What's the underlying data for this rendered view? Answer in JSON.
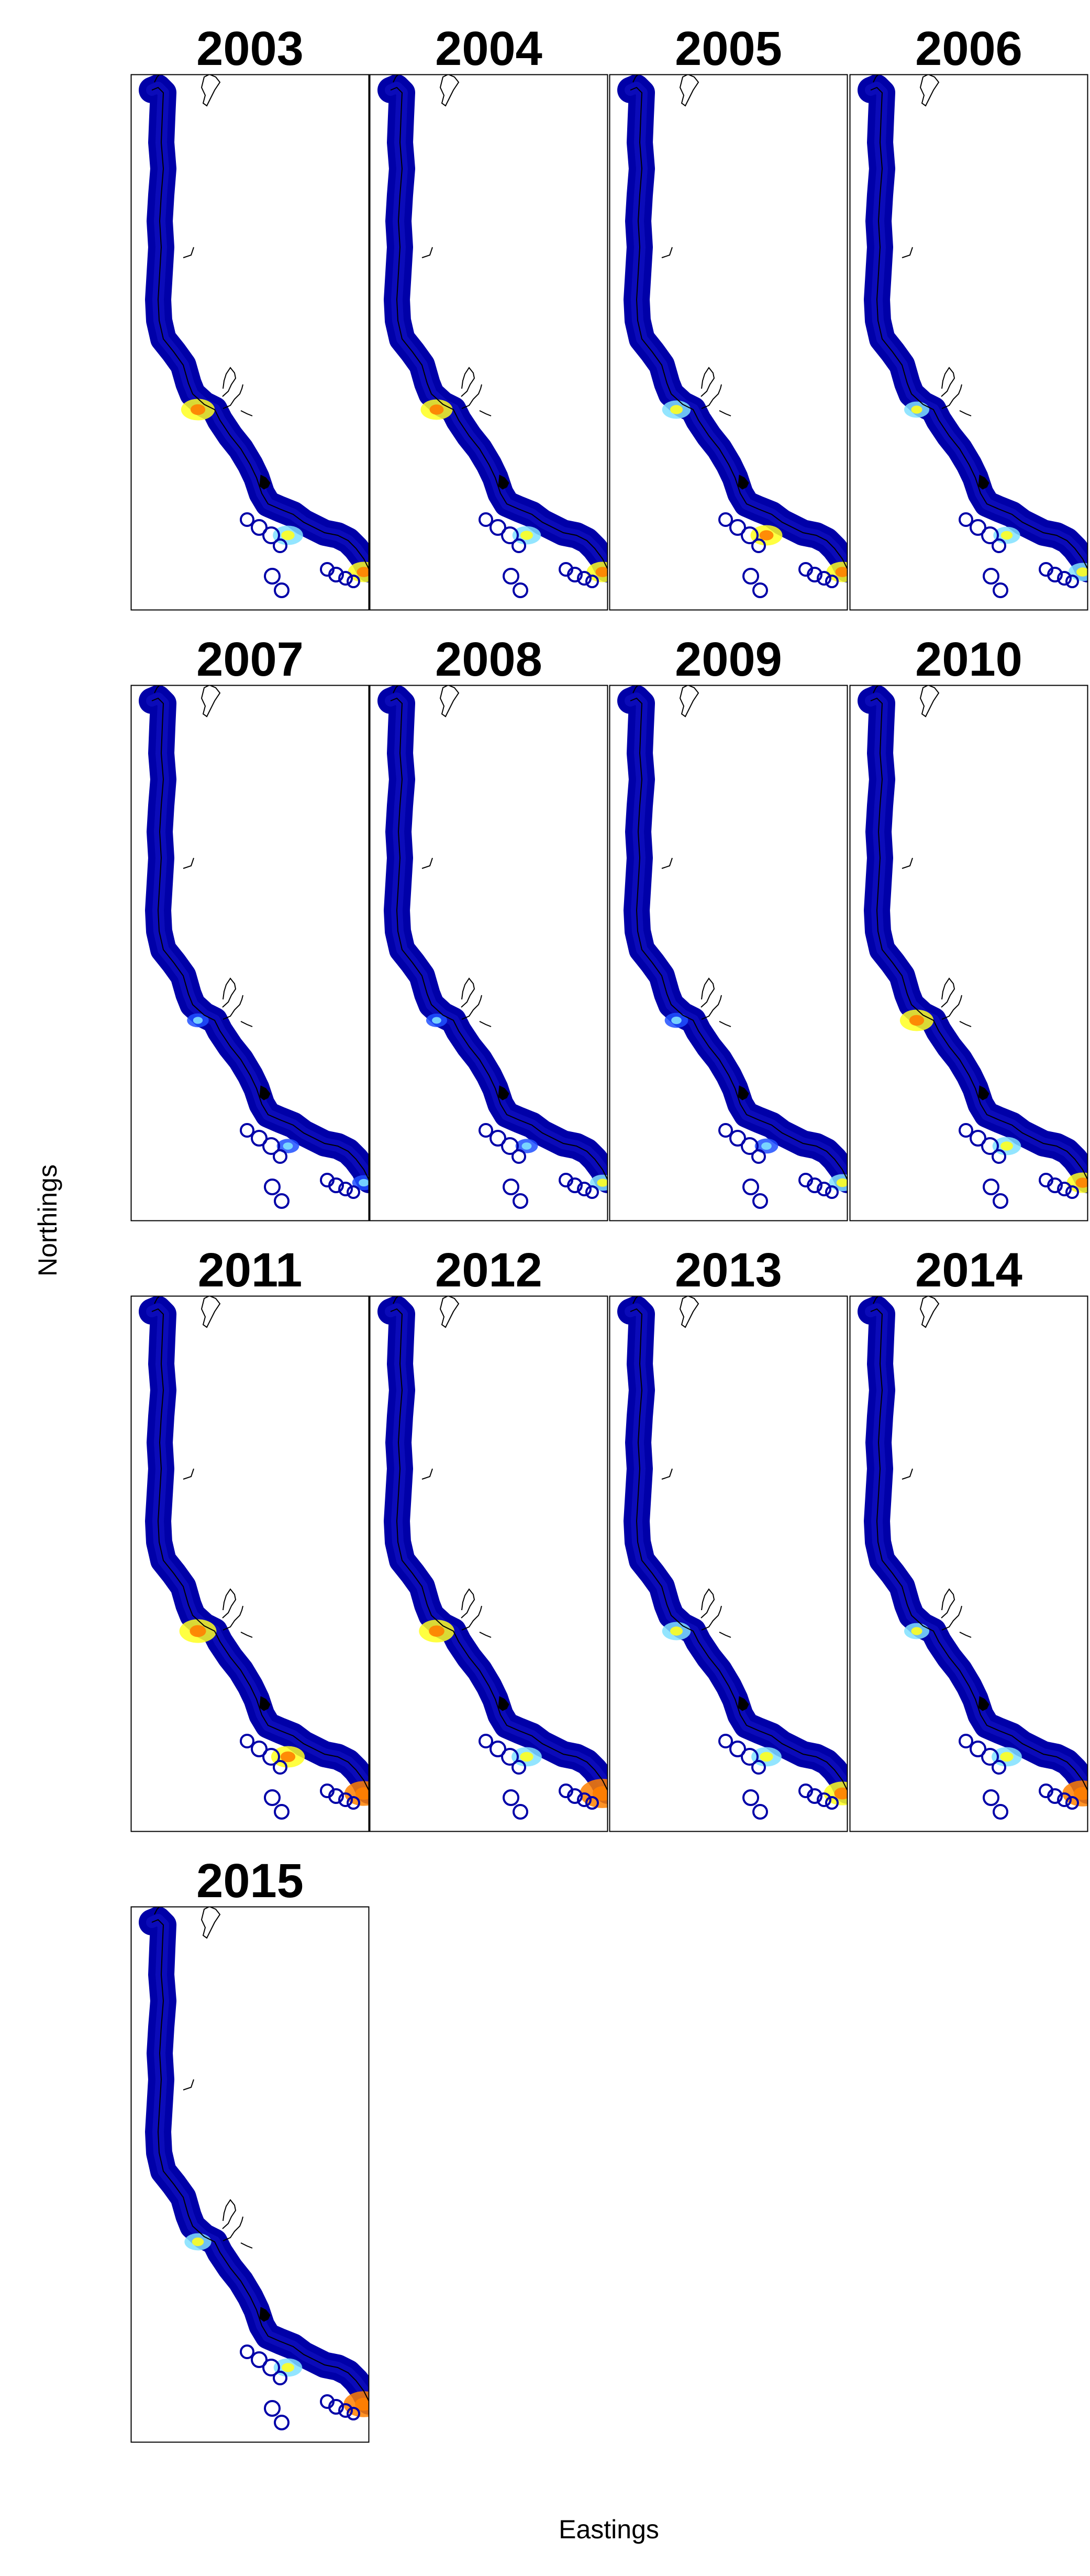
{
  "figure": {
    "xlabel": "Eastings",
    "ylabel": "Northings"
  },
  "panels": [
    {
      "title": "2003",
      "hotspots": [
        {
          "site": "mid",
          "level": 0.45
        },
        {
          "site": "south",
          "level": 0.35
        },
        {
          "site": "tip",
          "level": 0.4
        }
      ]
    },
    {
      "title": "2004",
      "hotspots": [
        {
          "site": "mid",
          "level": 0.4
        },
        {
          "site": "south",
          "level": 0.3
        },
        {
          "site": "tip",
          "level": 0.4
        }
      ]
    },
    {
      "title": "2005",
      "hotspots": [
        {
          "site": "mid",
          "level": 0.3
        },
        {
          "site": "south",
          "level": 0.4
        },
        {
          "site": "tip",
          "level": 0.4
        }
      ]
    },
    {
      "title": "2006",
      "hotspots": [
        {
          "site": "mid",
          "level": 0.2
        },
        {
          "site": "south",
          "level": 0.25
        },
        {
          "site": "tip",
          "level": 0.3
        }
      ]
    },
    {
      "title": "2007",
      "hotspots": [
        {
          "site": "mid",
          "level": 0.1
        },
        {
          "site": "south",
          "level": 0.12
        },
        {
          "site": "tip",
          "level": 0.15
        }
      ]
    },
    {
      "title": "2008",
      "hotspots": [
        {
          "site": "mid",
          "level": 0.08
        },
        {
          "site": "south",
          "level": 0.12
        },
        {
          "site": "tip",
          "level": 0.2
        }
      ]
    },
    {
      "title": "2009",
      "hotspots": [
        {
          "site": "mid",
          "level": 0.15
        },
        {
          "site": "south",
          "level": 0.15
        },
        {
          "site": "tip",
          "level": 0.25
        }
      ]
    },
    {
      "title": "2010",
      "hotspots": [
        {
          "site": "mid",
          "level": 0.45
        },
        {
          "site": "south",
          "level": 0.3
        },
        {
          "site": "tip",
          "level": 0.4
        }
      ]
    },
    {
      "title": "2011",
      "hotspots": [
        {
          "site": "mid",
          "level": 0.55
        },
        {
          "site": "south",
          "level": 0.45
        },
        {
          "site": "tip",
          "level": 0.6
        }
      ]
    },
    {
      "title": "2012",
      "hotspots": [
        {
          "site": "mid",
          "level": 0.5
        },
        {
          "site": "south",
          "level": 0.35
        },
        {
          "site": "tip",
          "level": 0.8
        }
      ]
    },
    {
      "title": "2013",
      "hotspots": [
        {
          "site": "mid",
          "level": 0.3
        },
        {
          "site": "south",
          "level": 0.35
        },
        {
          "site": "tip",
          "level": 0.55
        }
      ]
    },
    {
      "title": "2014",
      "hotspots": [
        {
          "site": "mid",
          "level": 0.2
        },
        {
          "site": "south",
          "level": 0.35
        },
        {
          "site": "tip",
          "level": 0.65
        }
      ]
    },
    {
      "title": "2015",
      "hotspots": [
        {
          "site": "mid",
          "level": 0.25
        },
        {
          "site": "south",
          "level": 0.3
        },
        {
          "site": "tip",
          "level": 0.65
        }
      ]
    }
  ],
  "colors": {
    "low": "#0000a8",
    "mid_low": "#2050ff",
    "mid": "#80e0ff",
    "mid_high": "#ffff20",
    "high": "#ff8000",
    "frame": "#000000",
    "background": "#ffffff"
  }
}
